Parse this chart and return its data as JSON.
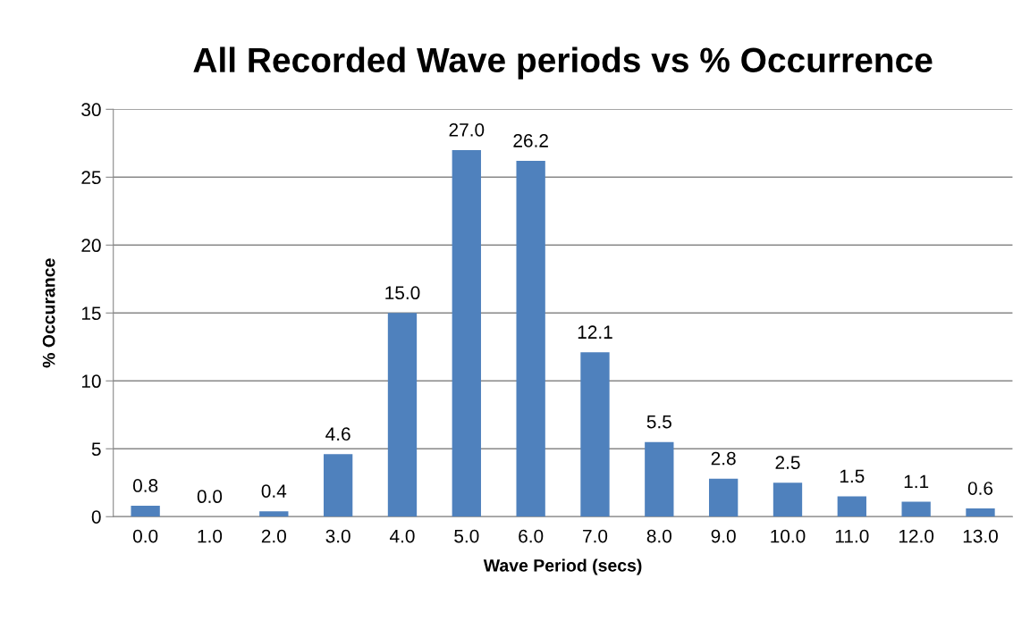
{
  "chart_data": {
    "type": "bar",
    "title": "All Recorded Wave periods vs % Occurrence",
    "xlabel": "Wave Period (secs)",
    "ylabel": "% Occurance",
    "categories": [
      "0.0",
      "1.0",
      "2.0",
      "3.0",
      "4.0",
      "5.0",
      "6.0",
      "7.0",
      "8.0",
      "9.0",
      "10.0",
      "11.0",
      "12.0",
      "13.0"
    ],
    "values": [
      0.8,
      0.0,
      0.4,
      4.6,
      15.0,
      27.0,
      26.2,
      12.1,
      5.5,
      2.8,
      2.5,
      1.5,
      1.1,
      0.6
    ],
    "value_labels": [
      "0.8",
      "0.0",
      "0.4",
      "4.6",
      "15.0",
      "27.0",
      "26.2",
      "12.1",
      "5.5",
      "2.8",
      "2.5",
      "1.5",
      "1.1",
      "0.6"
    ],
    "color": "#4f81bd",
    "ylim": [
      0,
      30
    ],
    "yticks": [
      0,
      5,
      10,
      15,
      20,
      25,
      30
    ],
    "grid": "y",
    "legend": false
  }
}
